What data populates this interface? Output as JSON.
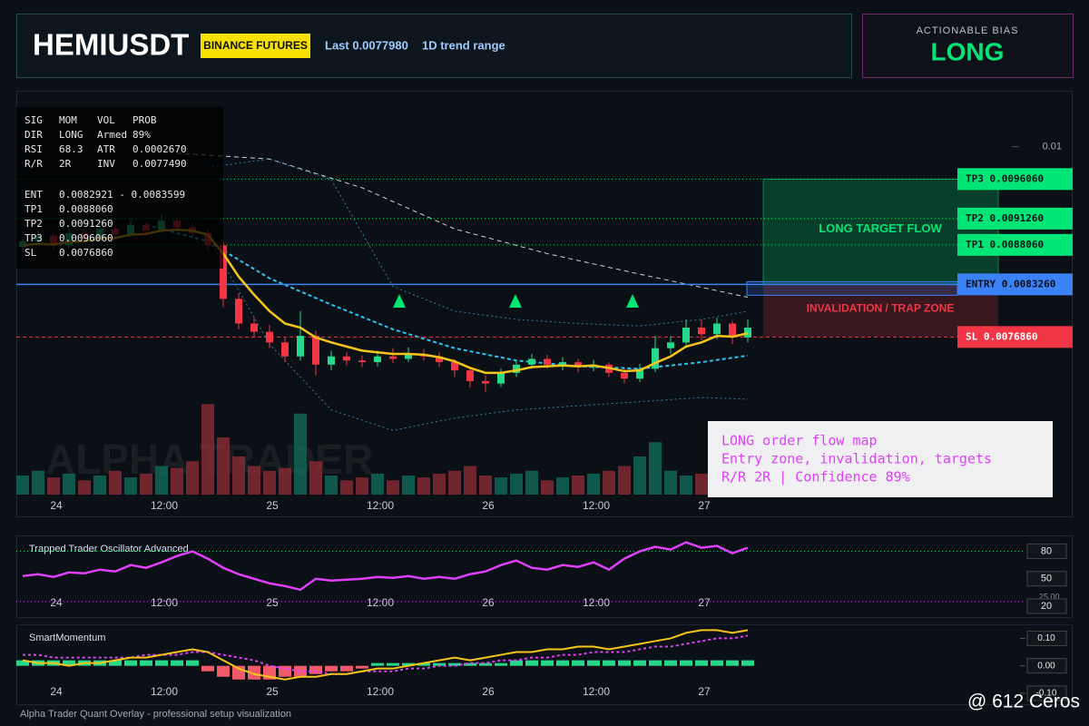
{
  "header": {
    "symbol": "HEMIUSDT",
    "exchange": "BINANCE FUTURES",
    "last": "Last 0.0077980",
    "range": "1D trend range"
  },
  "bias": {
    "label": "ACTIONABLE BIAS",
    "value": "LONG"
  },
  "stats": {
    "rows": [
      [
        "SIG",
        "MOM",
        "VOL",
        "PROB"
      ],
      [
        "DIR",
        "LONG",
        "Armed",
        "89%"
      ],
      [
        "RSI",
        "68.3",
        "ATR",
        "0.0002670"
      ],
      [
        "R/R",
        "2R",
        "INV",
        "0.0077490"
      ]
    ],
    "levels": [
      [
        "ENT",
        "0.0082921 - 0.0083599"
      ],
      [
        "TP1",
        "0.0088060"
      ],
      [
        "TP2",
        "0.0091260"
      ],
      [
        "TP3",
        "0.0096060"
      ],
      [
        "SL",
        "0.0076860"
      ]
    ]
  },
  "chart": {
    "ylim": [
      0.00577,
      0.01068
    ],
    "yticks": [
      0.01
    ],
    "xticks": [
      "24",
      "12:00",
      "25",
      "12:00",
      "26",
      "12:00",
      "27"
    ],
    "watermark": "ALPHA TRADER",
    "target_zone": "LONG TARGET FLOW",
    "trap_zone": "INVALIDATION / TRAP ZONE",
    "levels": [
      {
        "value": 0.009606,
        "label": "TP3 0.0096060",
        "color": "#00e676"
      },
      {
        "value": 0.009126,
        "label": "TP2 0.0091260",
        "color": "#00e676"
      },
      {
        "value": 0.008806,
        "label": "TP1 0.0088060",
        "color": "#00e676"
      },
      {
        "value": 0.008326,
        "label": "ENTRY 0.0083260",
        "color": "#3b82f6"
      },
      {
        "value": 0.007686,
        "label": "SL 0.0076860",
        "color": "#f23645"
      }
    ],
    "candles": [
      [
        0.00878,
        0.0089,
        0.00872,
        0.00885
      ],
      [
        0.00885,
        0.00898,
        0.0088,
        0.00892
      ],
      [
        0.00892,
        0.00895,
        0.00875,
        0.0088
      ],
      [
        0.0088,
        0.009,
        0.00877,
        0.00895
      ],
      [
        0.00895,
        0.00899,
        0.00883,
        0.00888
      ],
      [
        0.00888,
        0.00906,
        0.00885,
        0.009
      ],
      [
        0.009,
        0.00904,
        0.00888,
        0.00893
      ],
      [
        0.00893,
        0.00912,
        0.0089,
        0.00905
      ],
      [
        0.00905,
        0.00909,
        0.00894,
        0.00898
      ],
      [
        0.00898,
        0.00918,
        0.00895,
        0.0091
      ],
      [
        0.0091,
        0.00914,
        0.00897,
        0.00902
      ],
      [
        0.00902,
        0.00906,
        0.0089,
        0.00895
      ],
      [
        0.00895,
        0.009,
        0.00872,
        0.0088
      ],
      [
        0.0088,
        0.00884,
        0.00805,
        0.00815
      ],
      [
        0.00815,
        0.00822,
        0.00778,
        0.00785
      ],
      [
        0.00785,
        0.00792,
        0.00768,
        0.00775
      ],
      [
        0.00775,
        0.00783,
        0.00755,
        0.00762
      ],
      [
        0.00762,
        0.00768,
        0.00738,
        0.00745
      ],
      [
        0.00745,
        0.008,
        0.0074,
        0.0077
      ],
      [
        0.0077,
        0.00776,
        0.00722,
        0.00735
      ],
      [
        0.00735,
        0.00752,
        0.00728,
        0.00745
      ],
      [
        0.00745,
        0.0075,
        0.00734,
        0.0074
      ],
      [
        0.0074,
        0.00746,
        0.00732,
        0.00738
      ],
      [
        0.00738,
        0.00752,
        0.00733,
        0.00745
      ],
      [
        0.00745,
        0.00755,
        0.00737,
        0.00742
      ],
      [
        0.00742,
        0.00756,
        0.00738,
        0.00748
      ],
      [
        0.00748,
        0.00754,
        0.0074,
        0.00745
      ],
      [
        0.00745,
        0.0075,
        0.00732,
        0.00738
      ],
      [
        0.00738,
        0.00742,
        0.0072,
        0.00728
      ],
      [
        0.00728,
        0.00733,
        0.00707,
        0.00715
      ],
      [
        0.00715,
        0.00722,
        0.00702,
        0.00712
      ],
      [
        0.00712,
        0.0073,
        0.00708,
        0.00725
      ],
      [
        0.00725,
        0.0074,
        0.0072,
        0.00735
      ],
      [
        0.00735,
        0.00748,
        0.0073,
        0.00742
      ],
      [
        0.00742,
        0.00747,
        0.0073,
        0.00735
      ],
      [
        0.00735,
        0.00744,
        0.00728,
        0.00738
      ],
      [
        0.00738,
        0.00742,
        0.00726,
        0.00732
      ],
      [
        0.00732,
        0.00741,
        0.00727,
        0.00735
      ],
      [
        0.00735,
        0.00738,
        0.0072,
        0.00725
      ],
      [
        0.00725,
        0.0073,
        0.00712,
        0.00718
      ],
      [
        0.00718,
        0.00736,
        0.00714,
        0.0073
      ],
      [
        0.0073,
        0.0077,
        0.00726,
        0.00755
      ],
      [
        0.00755,
        0.0077,
        0.00748,
        0.00762
      ],
      [
        0.00762,
        0.0079,
        0.00755,
        0.0078
      ],
      [
        0.0078,
        0.0079,
        0.00765,
        0.00772
      ],
      [
        0.00772,
        0.00792,
        0.00766,
        0.00785
      ],
      [
        0.00785,
        0.00788,
        0.0076,
        0.00768
      ],
      [
        0.00768,
        0.0079,
        0.00762,
        0.0078
      ]
    ],
    "volumes": [
      20,
      25,
      18,
      22,
      15,
      20,
      25,
      18,
      22,
      30,
      28,
      35,
      95,
      60,
      40,
      30,
      25,
      28,
      85,
      35,
      20,
      15,
      18,
      22,
      15,
      20,
      18,
      22,
      25,
      30,
      20,
      18,
      22,
      25,
      15,
      18,
      20,
      22,
      25,
      30,
      40,
      55,
      25,
      20,
      22,
      18,
      25,
      20
    ],
    "ema": [
      0.0088,
      0.00882,
      0.00881,
      0.00884,
      0.00885,
      0.00888,
      0.00889,
      0.00893,
      0.00894,
      0.00898,
      0.00899,
      0.00898,
      0.00893,
      0.0087,
      0.00842,
      0.0082,
      0.008,
      0.00785,
      0.0078,
      0.00768,
      0.00762,
      0.00757,
      0.00752,
      0.0075,
      0.00748,
      0.00748,
      0.00747,
      0.00744,
      0.00739,
      0.00731,
      0.00725,
      0.00725,
      0.00728,
      0.00732,
      0.00733,
      0.00734,
      0.00733,
      0.00734,
      0.00731,
      0.00727,
      0.00728,
      0.00737,
      0.00745,
      0.00757,
      0.00762,
      0.0077,
      0.00769,
      0.00773
    ],
    "basis": {
      "x": [
        8,
        12,
        16,
        20,
        24,
        28,
        32,
        36,
        40,
        44,
        47
      ],
      "values": [
        0.00905,
        0.00885,
        0.0084,
        0.00808,
        0.00778,
        0.00755,
        0.0074,
        0.00733,
        0.0073,
        0.00738,
        0.00746
      ]
    },
    "upper": {
      "x": [
        12,
        16,
        20,
        24,
        28,
        32,
        36,
        40,
        44,
        47
      ],
      "values": [
        0.00975,
        0.00985,
        0.0096,
        0.0083,
        0.008,
        0.0079,
        0.00785,
        0.00782,
        0.0079,
        0.008
      ]
    },
    "lower": {
      "x": [
        12,
        16,
        20,
        24,
        28,
        32,
        36,
        40,
        44,
        47
      ],
      "values": [
        0.0089,
        0.0076,
        0.0068,
        0.00655,
        0.0067,
        0.0068,
        0.00685,
        0.0069,
        0.00695,
        0.00693
      ]
    },
    "long_ma": {
      "x": [
        10,
        16,
        22,
        28,
        34,
        40,
        47
      ],
      "values": [
        0.00992,
        0.00985,
        0.0095,
        0.009,
        0.0087,
        0.00845,
        0.00817
      ]
    }
  },
  "note": {
    "lines": [
      "LONG order flow map",
      "Entry zone, invalidation, targets",
      "R/R 2R | Confidence 89%"
    ]
  },
  "oscillator": {
    "title": "Trapped Trader Oscillator Advanced",
    "ylim": [
      8,
      97.5
    ],
    "yticks": [
      80,
      50,
      20
    ],
    "level": {
      "value": 25,
      "label": "25.00"
    },
    "values": [
      53,
      55,
      52,
      57,
      56,
      60,
      58,
      65,
      62,
      68,
      75,
      80,
      72,
      62,
      55,
      50,
      45,
      42,
      38,
      50,
      48,
      49,
      50,
      52,
      51,
      53,
      50,
      52,
      50,
      55,
      58,
      65,
      70,
      62,
      60,
      65,
      63,
      68,
      60,
      72,
      80,
      85,
      82,
      90,
      84,
      86,
      78,
      84
    ]
  },
  "momentum": {
    "title": "SmartMomentum",
    "ylim": [
      -0.14,
      0.151
    ],
    "yticks": [
      {
        "value": 0.1,
        "label": "0.10"
      },
      {
        "value": 0,
        "label": "0.00"
      },
      {
        "value": -0.1,
        "label": "-0.10"
      }
    ],
    "histogram": [
      0.02,
      0.02,
      0.02,
      0.02,
      0.02,
      0.02,
      0.02,
      0.02,
      0.02,
      0.02,
      0.02,
      0.02,
      -0.02,
      -0.04,
      -0.05,
      -0.05,
      -0.05,
      -0.04,
      -0.04,
      -0.03,
      -0.02,
      -0.02,
      -0.01,
      0.01,
      0.01,
      0.01,
      0.01,
      0.01,
      0.01,
      0.01,
      0.01,
      0.01,
      0.02,
      0.02,
      0.02,
      0.02,
      0.02,
      0.02,
      0.02,
      0.02,
      0.02,
      0.02,
      0.02,
      0.02,
      0.02,
      0.02,
      0.02,
      0.02
    ],
    "line": [
      0.02,
      0.01,
      0.01,
      0,
      0.01,
      0.01,
      0.02,
      0.03,
      0.03,
      0.04,
      0.05,
      0.06,
      0.05,
      0.02,
      -0.01,
      -0.03,
      -0.04,
      -0.05,
      -0.04,
      -0.04,
      -0.03,
      -0.03,
      -0.02,
      -0.01,
      -0.01,
      0,
      0.01,
      0.02,
      0.03,
      0.02,
      0.03,
      0.04,
      0.05,
      0.05,
      0.06,
      0.06,
      0.07,
      0.07,
      0.06,
      0.07,
      0.08,
      0.09,
      0.1,
      0.12,
      0.13,
      0.13,
      0.12,
      0.13
    ],
    "signal": [
      0.04,
      0.04,
      0.03,
      0.03,
      0.03,
      0.03,
      0.03,
      0.03,
      0.04,
      0.04,
      0.04,
      0.05,
      0.05,
      0.04,
      0.03,
      0.02,
      0,
      -0.01,
      -0.02,
      -0.02,
      -0.03,
      -0.03,
      -0.02,
      -0.02,
      -0.02,
      -0.01,
      -0.01,
      0,
      0,
      0.01,
      0.01,
      0.02,
      0.02,
      0.03,
      0.03,
      0.04,
      0.04,
      0.05,
      0.05,
      0.05,
      0.06,
      0.07,
      0.07,
      0.08,
      0.09,
      0.1,
      0.1,
      0.11
    ]
  },
  "footer": "Alpha Trader Quant Overlay - professional setup visualization",
  "watermark": "@ 612 Ceros"
}
